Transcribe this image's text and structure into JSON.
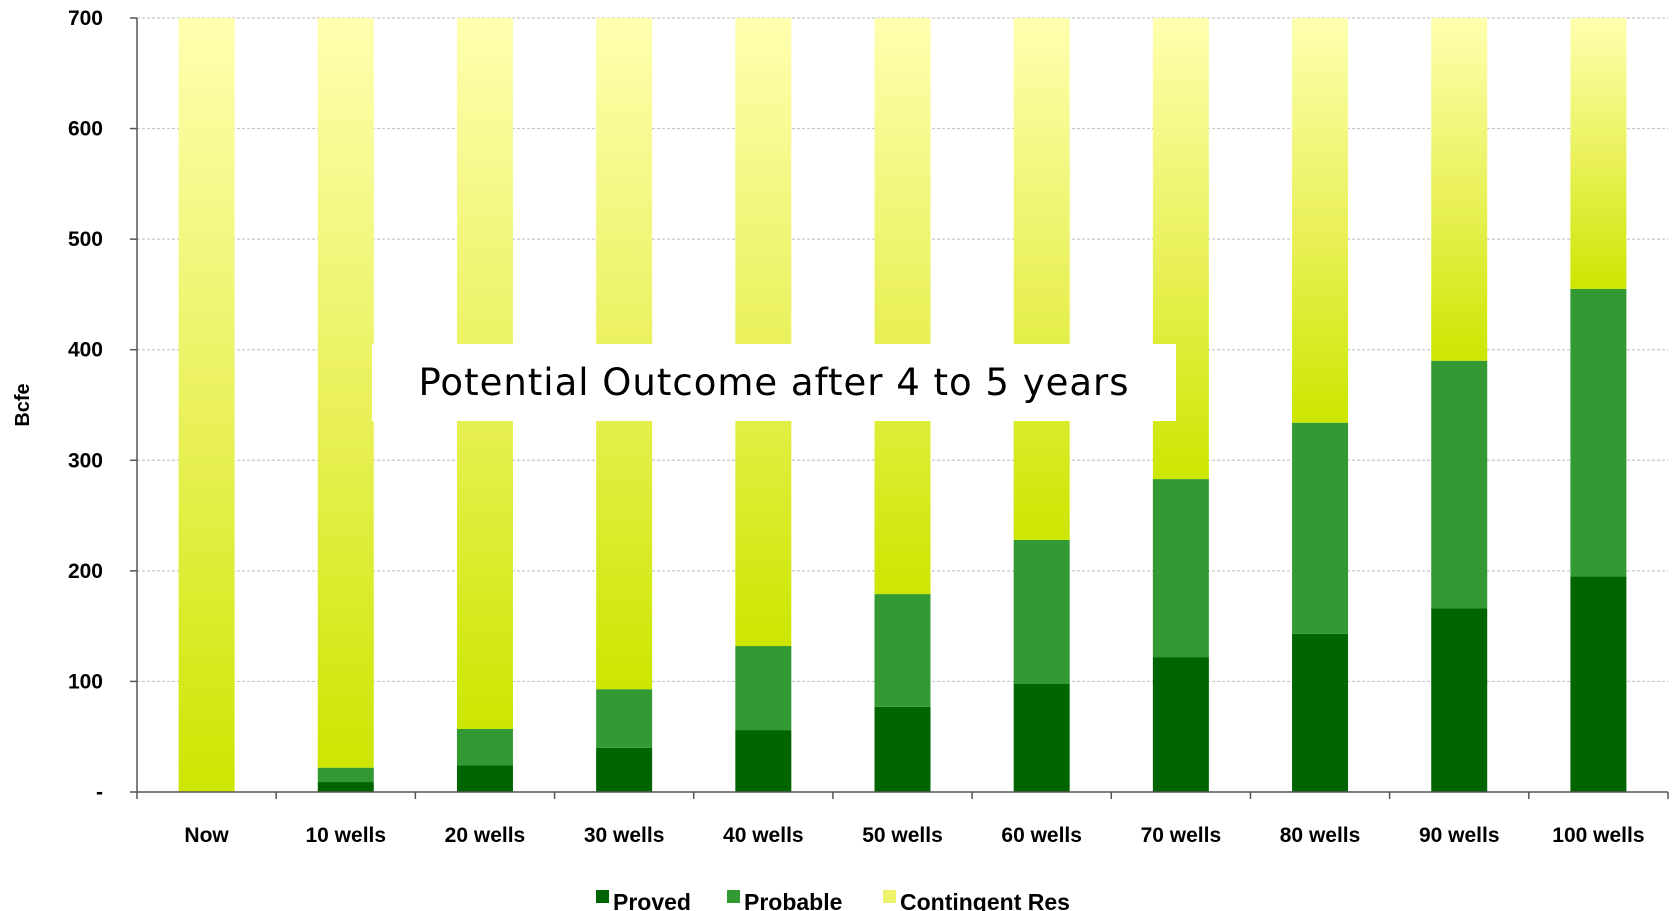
{
  "chart_data": {
    "type": "bar",
    "stacked": true,
    "categories": [
      "Now",
      "10 wells",
      "20 wells",
      "30 wells",
      "40 wells",
      "50 wells",
      "60 wells",
      "70 wells",
      "80 wells",
      "90 wells",
      "100 wells"
    ],
    "series": [
      {
        "name": "Proved",
        "color": "#006400",
        "values": [
          0,
          9,
          24,
          40,
          56,
          77,
          98,
          122,
          143,
          166,
          195
        ]
      },
      {
        "name": "Probable",
        "color": "#339933",
        "values": [
          0,
          13,
          33,
          53,
          76,
          102,
          130,
          161,
          191,
          224,
          260
        ]
      },
      {
        "name": "Contingent Res",
        "color": "#e6f03c",
        "values": [
          700,
          678,
          643,
          607,
          568,
          521,
          472,
          417,
          366,
          310,
          245
        ]
      }
    ],
    "ylabel": "Bcfe",
    "xlabel": "",
    "ylim": [
      0,
      700
    ],
    "yticks": [
      "-",
      "100",
      "200",
      "300",
      "400",
      "500",
      "600",
      "700"
    ],
    "grid": true,
    "legend_position": "bottom",
    "annotation": "Potential Outcome after 4 to 5 years"
  }
}
